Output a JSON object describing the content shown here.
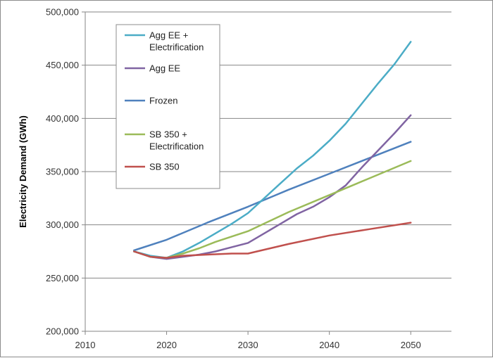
{
  "chart_data": {
    "type": "line",
    "title": "",
    "xlabel": "",
    "ylabel": "Electricity Demand (GWh)",
    "xlim": [
      2010,
      2055
    ],
    "ylim": [
      200000,
      500000
    ],
    "x_ticks": [
      2010,
      2020,
      2030,
      2040,
      2050
    ],
    "x_tick_labels": [
      "2010",
      "2020",
      "2030",
      "2040",
      "2050"
    ],
    "y_ticks": [
      200000,
      250000,
      300000,
      350000,
      400000,
      450000,
      500000
    ],
    "y_tick_labels": [
      "200,000",
      "250,000",
      "300,000",
      "350,000",
      "400,000",
      "450,000",
      "500,000"
    ],
    "grid": "horizontal",
    "legend_position": "top-left",
    "series": [
      {
        "name": "Agg EE + Electrification",
        "color": "#4bacc6",
        "x": [
          2016,
          2018,
          2020,
          2022,
          2024,
          2026,
          2028,
          2030,
          2032,
          2034,
          2036,
          2038,
          2040,
          2042,
          2044,
          2046,
          2048,
          2050
        ],
        "values": [
          275000,
          271000,
          269000,
          275000,
          283000,
          292000,
          301000,
          311000,
          325000,
          339000,
          353000,
          365000,
          379000,
          395000,
          414000,
          433000,
          451000,
          472000
        ]
      },
      {
        "name": "Agg EE",
        "color": "#8064a2",
        "x": [
          2016,
          2018,
          2020,
          2022,
          2024,
          2026,
          2028,
          2030,
          2032,
          2034,
          2036,
          2038,
          2040,
          2042,
          2044,
          2046,
          2048,
          2050
        ],
        "values": [
          275000,
          270000,
          268000,
          270000,
          272000,
          275000,
          279000,
          283000,
          292000,
          301000,
          310000,
          317000,
          326000,
          337000,
          354000,
          370000,
          386000,
          403000
        ]
      },
      {
        "name": "Frozen",
        "color": "#4f81bd",
        "x": [
          2016,
          2020,
          2025,
          2030,
          2035,
          2040,
          2045,
          2050
        ],
        "values": [
          276000,
          286000,
          302000,
          317000,
          333000,
          348000,
          363000,
          378000
        ]
      },
      {
        "name": "SB 350 + Electrification",
        "color": "#9bbb59",
        "x": [
          2016,
          2018,
          2020,
          2022,
          2024,
          2026,
          2028,
          2030,
          2035,
          2040,
          2045,
          2050
        ],
        "values": [
          275000,
          270000,
          269000,
          273000,
          278000,
          284000,
          289000,
          294000,
          312000,
          328000,
          344000,
          360000
        ]
      },
      {
        "name": "SB 350",
        "color": "#c0504d",
        "x": [
          2016,
          2018,
          2020,
          2022,
          2025,
          2028,
          2030,
          2035,
          2040,
          2045,
          2050
        ],
        "values": [
          275000,
          270000,
          269000,
          271000,
          272000,
          273000,
          273000,
          282000,
          290000,
          296000,
          302000
        ]
      }
    ]
  }
}
